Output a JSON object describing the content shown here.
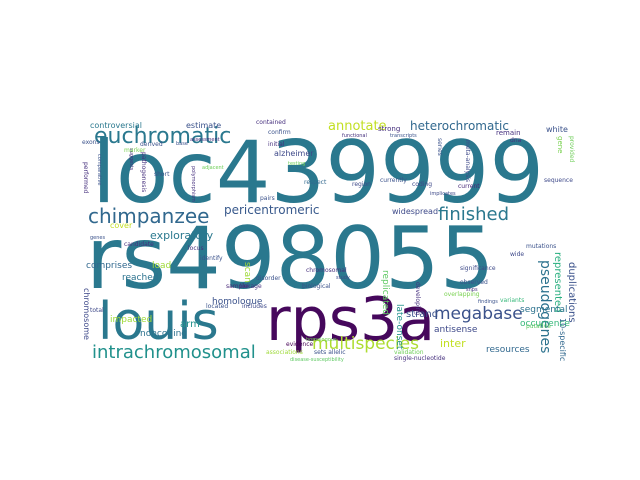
{
  "words": [
    {
      "text": "loc439999",
      "color": "#2a788e"
    },
    {
      "text": "rs498055",
      "color": "#2a788e"
    },
    {
      "text": "rps3a",
      "color": "#46085c"
    },
    {
      "text": "louis",
      "color": "#2a788e"
    },
    {
      "text": "euchromatic",
      "color": "#2a788e"
    },
    {
      "text": "chimpanzee",
      "color": "#31688e"
    },
    {
      "text": "finished",
      "color": "#2a788e"
    },
    {
      "text": "multispecies",
      "color": "#addc30"
    },
    {
      "text": "intrachromosomal",
      "color": "#21918c"
    },
    {
      "text": "megabase",
      "color": "#3b528b"
    },
    {
      "text": "heterochromatic",
      "color": "#31688e"
    },
    {
      "text": "annotate",
      "color": "#c2df23"
    },
    {
      "text": "pseudogenes",
      "color": "#2c728e"
    },
    {
      "text": "pericentromeric",
      "color": "#38598c"
    },
    {
      "text": "exploratory",
      "color": "#2a788e"
    },
    {
      "text": "controversial",
      "color": "#2a788e"
    },
    {
      "text": "estimate",
      "color": "#3b528b"
    },
    {
      "text": "alzheimer",
      "color": "#3e4989"
    },
    {
      "text": "widespread",
      "color": "#3e4a89"
    },
    {
      "text": "represented",
      "color": "#29af7f"
    },
    {
      "text": "duplications",
      "color": "#3b528b"
    },
    {
      "text": "replicated",
      "color": "#5ec962"
    },
    {
      "text": "late-onset",
      "color": "#21918c"
    },
    {
      "text": "antisense",
      "color": "#3e4989"
    },
    {
      "text": "segmental",
      "color": "#2c728e"
    },
    {
      "text": "strand",
      "color": "#3b528b"
    },
    {
      "text": "inter",
      "color": "#c2df23"
    },
    {
      "text": "resources",
      "color": "#31688e"
    },
    {
      "text": "occurrence",
      "color": "#35b779"
    },
    {
      "text": "homologue",
      "color": "#3b528b"
    },
    {
      "text": "noncoding",
      "color": "#2c728e"
    },
    {
      "text": "arm",
      "color": "#21918c"
    },
    {
      "text": "scan",
      "color": "#a0da39"
    },
    {
      "text": "reached",
      "color": "#2c728e"
    },
    {
      "text": "impacted",
      "color": "#a0da39"
    },
    {
      "text": "comprises",
      "color": "#31688e"
    },
    {
      "text": "chromosome",
      "color": "#3e4989"
    },
    {
      "text": "load",
      "color": "#a0da39"
    },
    {
      "text": "cover",
      "color": "#c2df23"
    },
    {
      "text": "white",
      "color": "#3b528b"
    },
    {
      "text": "strong",
      "color": "#46307e"
    },
    {
      "text": "remain",
      "color": "#46307e"
    },
    {
      "text": "coding",
      "color": "#3e4989"
    },
    {
      "text": "region",
      "color": "#3e4a89"
    },
    {
      "text": "respect",
      "color": "#31688e"
    },
    {
      "text": "identify",
      "color": "#3b528b"
    },
    {
      "text": "linkage",
      "color": "#46307e"
    },
    {
      "text": "includes",
      "color": "#3e4989"
    },
    {
      "text": "evidence",
      "color": "#440154"
    },
    {
      "text": "homologous",
      "color": "#6ece58"
    },
    {
      "text": "disorder",
      "color": "#3b528b"
    },
    {
      "text": "sample",
      "color": "#482878"
    },
    {
      "text": "located",
      "color": "#3b528b"
    },
    {
      "text": "locus",
      "color": "#46307e"
    },
    {
      "text": "candidate",
      "color": "#46307e"
    },
    {
      "text": "mutations",
      "color": "#3b528b"
    },
    {
      "text": "wide",
      "color": "#3e4989"
    },
    {
      "text": "observed",
      "color": "#3b528b"
    },
    {
      "text": "overlapping",
      "color": "#7ad151"
    },
    {
      "text": "variants",
      "color": "#35b779"
    },
    {
      "text": "putative",
      "color": "#5ec962"
    },
    {
      "text": "10-specific",
      "color": "#31688e"
    },
    {
      "text": "significance",
      "color": "#3e4a89"
    },
    {
      "text": "snps",
      "color": "#46307e"
    },
    {
      "text": "findings",
      "color": "#3b528b"
    },
    {
      "text": "current",
      "color": "#482878"
    },
    {
      "text": "implicates",
      "color": "#3e4989"
    },
    {
      "text": "developing",
      "color": "#46307e"
    },
    {
      "text": "biological",
      "color": "#3b528b"
    },
    {
      "text": "study",
      "color": "#3e4989"
    },
    {
      "text": "validation",
      "color": "#6ece58"
    },
    {
      "text": "sets allelic",
      "color": "#3b528b"
    },
    {
      "text": "associations",
      "color": "#9fda3a"
    },
    {
      "text": "disease-susceptibility",
      "color": "#5ec962"
    },
    {
      "text": "single-nucleotide",
      "color": "#46307e"
    },
    {
      "text": "gene",
      "color": "#7ad151"
    },
    {
      "text": "sequence",
      "color": "#3e4989"
    },
    {
      "text": "meta-analysis",
      "color": "#3e4989"
    },
    {
      "text": "transcripts",
      "color": "#3b528b"
    },
    {
      "text": "functional",
      "color": "#46307e"
    },
    {
      "text": "series",
      "color": "#3b528b"
    },
    {
      "text": "contained",
      "color": "#46307e"
    },
    {
      "text": "confirm",
      "color": "#3b528b"
    },
    {
      "text": "initial",
      "color": "#46307e"
    },
    {
      "text": "testing",
      "color": "#6ece58"
    },
    {
      "text": "adjacent",
      "color": "#6ece58"
    },
    {
      "text": "short",
      "color": "#3b528b"
    },
    {
      "text": "pairs",
      "color": "#3b528b"
    },
    {
      "text": "polymorphism",
      "color": "#46307e"
    },
    {
      "text": "pathogenesis",
      "color": "#46307e"
    },
    {
      "text": "base",
      "color": "#3b528b"
    },
    {
      "text": "assessment",
      "color": "#46307e"
    },
    {
      "text": "derived",
      "color": "#3b528b"
    },
    {
      "text": "suggests",
      "color": "#46307e"
    },
    {
      "text": "comparative",
      "color": "#3b528b"
    },
    {
      "text": "marker",
      "color": "#7ad151"
    },
    {
      "text": "exons",
      "color": "#3b528b"
    },
    {
      "text": "performed",
      "color": "#46307e"
    },
    {
      "text": "genes",
      "color": "#3b528b"
    },
    {
      "text": "total",
      "color": "#3e4989"
    },
    {
      "text": "chromosomal",
      "color": "#46307e"
    },
    {
      "text": "currently",
      "color": "#3b528b"
    },
    {
      "text": "dna",
      "color": "#46307e"
    },
    {
      "text": "provided",
      "color": "#6ece58"
    }
  ]
}
